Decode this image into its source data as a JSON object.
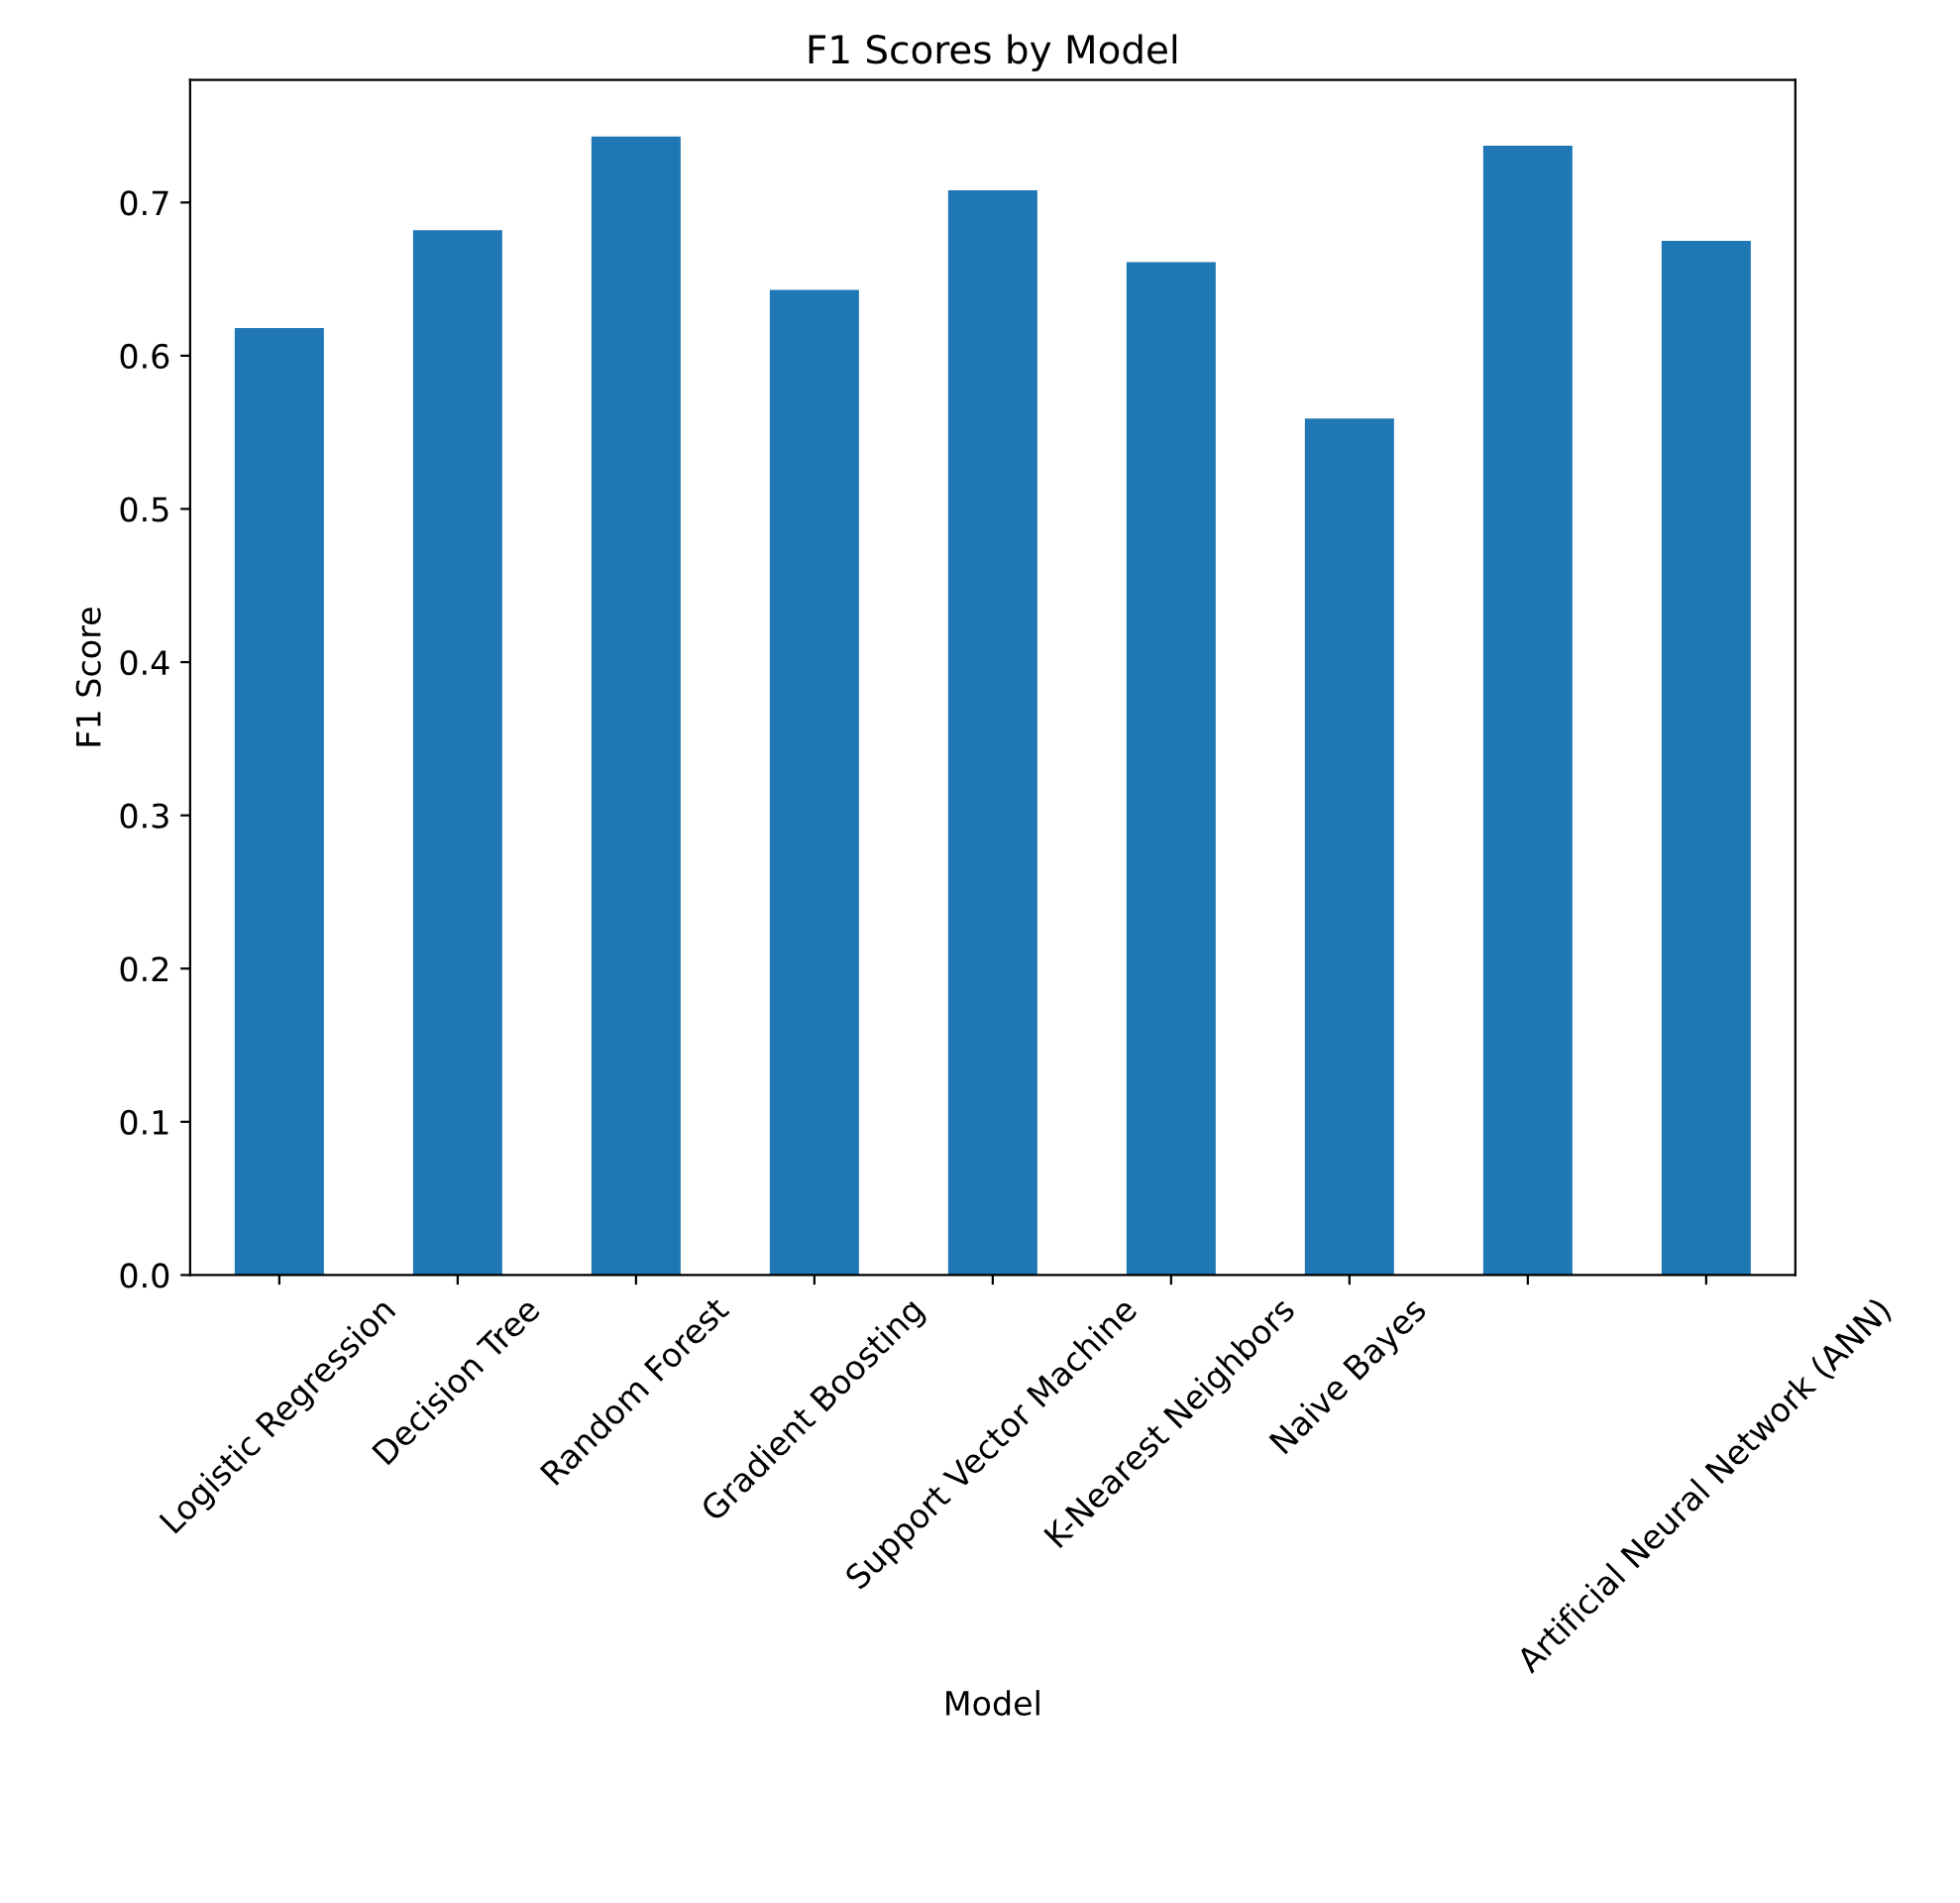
{
  "chart_data": {
    "type": "bar",
    "title": "F1 Scores by Model",
    "xlabel": "Model",
    "ylabel": "F1 Score",
    "categories": [
      "Logistic Regression",
      "Decision Tree",
      "Random Forest",
      "Gradient Boosting",
      "Support Vector Machine",
      "K-Nearest Neighbors",
      "Naive Bayes",
      null,
      "Artificial Neural Network (ANN)"
    ],
    "values": [
      0.618,
      0.682,
      0.743,
      0.643,
      0.708,
      0.661,
      0.559,
      0.737,
      0.675
    ],
    "color": "#1f77b4",
    "ylim": [
      0,
      0.78
    ],
    "yticks": [
      {
        "value": 0,
        "label": "0.0"
      },
      0.1,
      0.2,
      0.3,
      0.4,
      0.5,
      0.6,
      0.7
    ],
    "grid": false,
    "legend": false
  }
}
